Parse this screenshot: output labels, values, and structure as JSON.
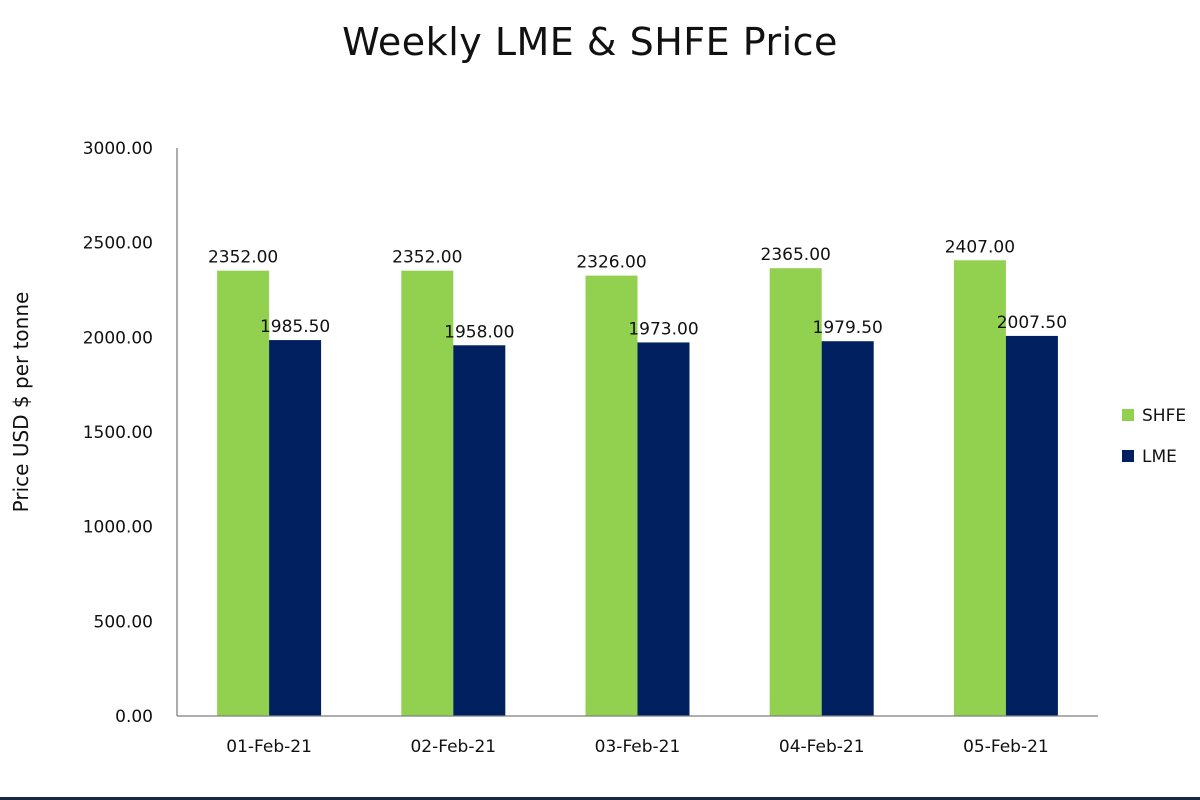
{
  "chart_data": {
    "type": "bar",
    "title": "Weekly LME & SHFE Price",
    "ylabel": "Price  USD  $  per  tonne",
    "xlabel": "",
    "categories": [
      "01-Feb-21",
      "02-Feb-21",
      "03-Feb-21",
      "04-Feb-21",
      "05-Feb-21"
    ],
    "series": [
      {
        "name": "SHFE",
        "color": "#92d050",
        "values": [
          2352.0,
          2352.0,
          2326.0,
          2365.0,
          2407.0
        ],
        "labels": [
          "2352.00",
          "2352.00",
          "2326.00",
          "2365.00",
          "2407.00"
        ]
      },
      {
        "name": "LME",
        "color": "#002060",
        "values": [
          1985.5,
          1958.0,
          1973.0,
          1979.5,
          2007.5
        ],
        "labels": [
          "1985.50",
          "1958.00",
          "1973.00",
          "1979.50",
          "2007.50"
        ]
      }
    ],
    "ylim": [
      0,
      3000
    ],
    "yticks": [
      "0.00",
      "500.00",
      "1000.00",
      "1500.00",
      "2000.00",
      "2500.00",
      "3000.00"
    ],
    "grid": false,
    "legend": "right"
  }
}
